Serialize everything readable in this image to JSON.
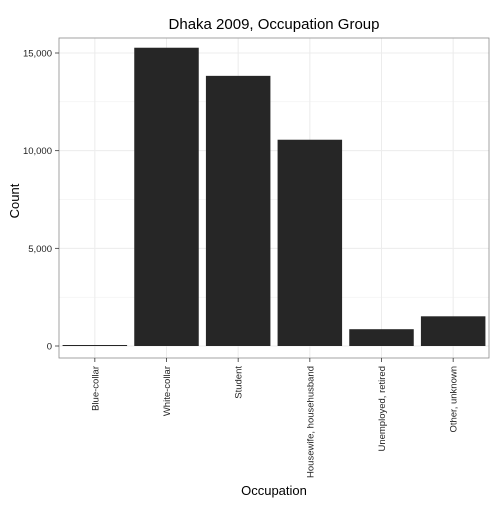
{
  "chart_data": {
    "type": "bar",
    "title": "Dhaka 2009, Occupation Group",
    "xlabel": "Occupation",
    "ylabel": "Count",
    "categories": [
      "Blue-collar",
      "White-collar",
      "Student",
      "Housewife, househusband",
      "Unemployed, retired",
      "Other, unknown"
    ],
    "values": [
      30,
      15270,
      13830,
      10560,
      860,
      1520
    ],
    "ylim": [
      0,
      16000
    ],
    "yticks": [
      0,
      5000,
      10000,
      15000
    ],
    "ytick_labels": [
      "0",
      "5,000",
      "10,000",
      "15,000"
    ],
    "grid": true,
    "legend": "none",
    "colors": {
      "bar": "#262626",
      "grid": "#ececec",
      "panel_border": "#8c8c8c",
      "text": "#000000",
      "tick_text": "#222222"
    }
  }
}
